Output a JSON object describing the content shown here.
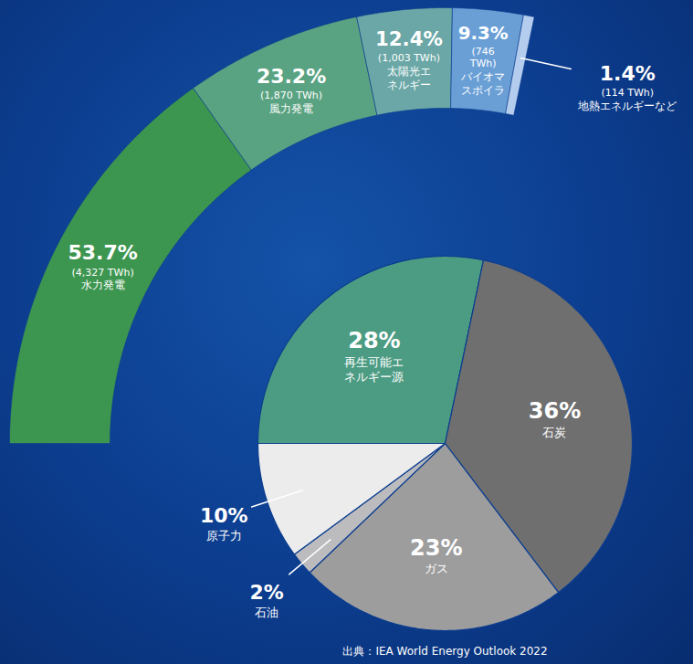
{
  "chart_data": [
    {
      "type": "pie",
      "categories": [
        "再生可能エネルギー源",
        "石炭",
        "ガス",
        "石油",
        "原子力"
      ],
      "values": [
        28,
        36,
        23,
        2,
        10
      ],
      "value_labels": [
        "28%",
        "36%",
        "23%",
        "2%",
        "10%"
      ],
      "colors": [
        "#4c9c83",
        "#6f6f6f",
        "#9d9d9d",
        "#bcbcbf",
        "#ececec"
      ],
      "data_labels": true,
      "caption": "出典：IEA World Energy Outlook 2022"
    },
    {
      "type": "donut",
      "parent": "再生可能エネルギー源",
      "categories": [
        "水力発電",
        "風力発電",
        "太陽光エネルギー",
        "バイオマスボイラ",
        "地熱エネルギーなど"
      ],
      "values": [
        53.7,
        23.2,
        12.4,
        9.3,
        1.4
      ],
      "value_labels": [
        "53.7%",
        "23.2%",
        "12.4%",
        "9.3%",
        "1.4%"
      ],
      "twh": [
        4327,
        1870,
        1003,
        746,
        114
      ],
      "twh_labels": [
        "(4,327 TWh)",
        "(1,870 TWh)",
        "(1,003 TWh)",
        "(746 TWh)",
        "(114 TWh)"
      ],
      "colors": [
        "#3d9650",
        "#5aa382",
        "#6aa7a6",
        "#6a9fd6",
        "#b4cdee"
      ],
      "data_labels": true
    }
  ]
}
